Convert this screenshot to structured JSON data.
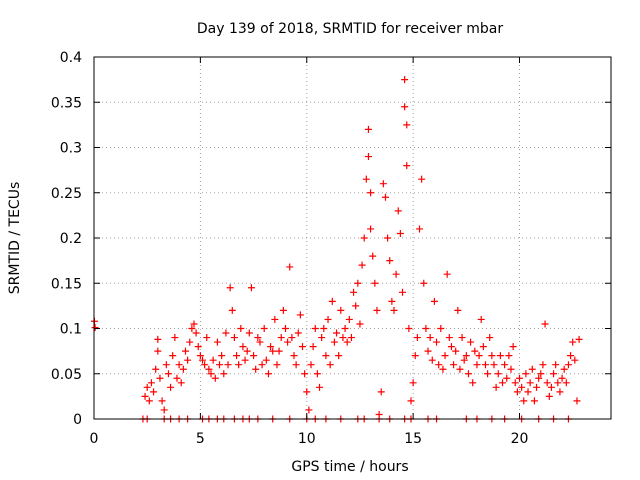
{
  "chart_data": {
    "type": "scatter",
    "title": "Day 139 of 2018, SRMTID for receiver mbar",
    "xlabel": "GPS time / hours",
    "ylabel": "SRMTID / TECUs",
    "xlim": [
      0,
      24.3
    ],
    "ylim": [
      0,
      0.4
    ],
    "xticks": [
      0,
      5,
      10,
      15,
      20
    ],
    "xtick_labels": [
      "0",
      "5",
      "10",
      "15",
      "20"
    ],
    "yticks": [
      0,
      0.05,
      0.1,
      0.15,
      0.2,
      0.25,
      0.3,
      0.35,
      0.4
    ],
    "ytick_labels": [
      "0",
      "0.05",
      "0.1",
      "0.15",
      "0.2",
      "0.25",
      "0.3",
      "0.35",
      "0.4"
    ],
    "grid": true,
    "marker": "plus",
    "series": [
      {
        "name": "SRMTID",
        "color": "#ff0000",
        "points": [
          [
            0.02,
            0.108
          ],
          [
            0.05,
            0.101
          ],
          [
            2.4,
            0.025
          ],
          [
            2.5,
            0.035
          ],
          [
            2.6,
            0.02
          ],
          [
            2.7,
            0.04
          ],
          [
            2.8,
            0.03
          ],
          [
            2.9,
            0.055
          ],
          [
            3.0,
            0.075
          ],
          [
            3.0,
            0.088
          ],
          [
            3.1,
            0.045
          ],
          [
            3.2,
            0.02
          ],
          [
            3.3,
            0.01
          ],
          [
            3.4,
            0.06
          ],
          [
            3.5,
            0.05
          ],
          [
            3.6,
            0.035
          ],
          [
            3.7,
            0.07
          ],
          [
            3.8,
            0.09
          ],
          [
            3.9,
            0.045
          ],
          [
            4.0,
            0.06
          ],
          [
            4.1,
            0.04
          ],
          [
            4.2,
            0.055
          ],
          [
            4.3,
            0.075
          ],
          [
            4.4,
            0.065
          ],
          [
            4.5,
            0.085
          ],
          [
            4.6,
            0.1
          ],
          [
            4.7,
            0.105
          ],
          [
            4.8,
            0.095
          ],
          [
            4.9,
            0.08
          ],
          [
            5.0,
            0.07
          ],
          [
            5.1,
            0.065
          ],
          [
            5.2,
            0.06
          ],
          [
            5.3,
            0.09
          ],
          [
            5.4,
            0.055
          ],
          [
            5.5,
            0.05
          ],
          [
            5.6,
            0.065
          ],
          [
            5.7,
            0.045
          ],
          [
            5.8,
            0.085
          ],
          [
            5.9,
            0.06
          ],
          [
            6.0,
            0.07
          ],
          [
            6.1,
            0.05
          ],
          [
            6.2,
            0.095
          ],
          [
            6.3,
            0.06
          ],
          [
            6.4,
            0.145
          ],
          [
            6.5,
            0.12
          ],
          [
            6.6,
            0.09
          ],
          [
            6.7,
            0.07
          ],
          [
            6.8,
            0.06
          ],
          [
            6.9,
            0.1
          ],
          [
            7.0,
            0.08
          ],
          [
            7.1,
            0.065
          ],
          [
            7.2,
            0.075
          ],
          [
            7.3,
            0.095
          ],
          [
            7.4,
            0.145
          ],
          [
            7.5,
            0.07
          ],
          [
            7.6,
            0.055
          ],
          [
            7.7,
            0.09
          ],
          [
            7.8,
            0.085
          ],
          [
            7.9,
            0.06
          ],
          [
            8.0,
            0.1
          ],
          [
            8.1,
            0.065
          ],
          [
            8.2,
            0.05
          ],
          [
            8.3,
            0.08
          ],
          [
            8.4,
            0.075
          ],
          [
            8.5,
            0.11
          ],
          [
            8.6,
            0.06
          ],
          [
            8.7,
            0.075
          ],
          [
            8.8,
            0.09
          ],
          [
            8.9,
            0.12
          ],
          [
            9.0,
            0.1
          ],
          [
            9.1,
            0.085
          ],
          [
            9.2,
            0.168
          ],
          [
            9.3,
            0.09
          ],
          [
            9.4,
            0.07
          ],
          [
            9.5,
            0.06
          ],
          [
            9.6,
            0.095
          ],
          [
            9.7,
            0.115
          ],
          [
            9.8,
            0.08
          ],
          [
            9.9,
            0.05
          ],
          [
            10.0,
            0.03
          ],
          [
            10.1,
            0.01
          ],
          [
            10.2,
            0.06
          ],
          [
            10.3,
            0.08
          ],
          [
            10.4,
            0.1
          ],
          [
            10.5,
            0.05
          ],
          [
            10.6,
            0.035
          ],
          [
            10.7,
            0.09
          ],
          [
            10.8,
            0.1
          ],
          [
            10.9,
            0.07
          ],
          [
            11.0,
            0.11
          ],
          [
            11.1,
            0.06
          ],
          [
            11.2,
            0.13
          ],
          [
            11.3,
            0.085
          ],
          [
            11.4,
            0.095
          ],
          [
            11.5,
            0.07
          ],
          [
            11.6,
            0.12
          ],
          [
            11.7,
            0.09
          ],
          [
            11.8,
            0.1
          ],
          [
            11.9,
            0.085
          ],
          [
            12.0,
            0.11
          ],
          [
            12.1,
            0.09
          ],
          [
            12.2,
            0.14
          ],
          [
            12.3,
            0.125
          ],
          [
            12.4,
            0.15
          ],
          [
            12.5,
            0.105
          ],
          [
            12.6,
            0.17
          ],
          [
            12.7,
            0.2
          ],
          [
            12.8,
            0.265
          ],
          [
            12.9,
            0.32
          ],
          [
            12.9,
            0.29
          ],
          [
            13.0,
            0.25
          ],
          [
            13.0,
            0.21
          ],
          [
            13.1,
            0.18
          ],
          [
            13.2,
            0.15
          ],
          [
            13.3,
            0.12
          ],
          [
            13.4,
            0.005
          ],
          [
            13.5,
            0.03
          ],
          [
            13.6,
            0.26
          ],
          [
            13.7,
            0.245
          ],
          [
            13.8,
            0.2
          ],
          [
            13.9,
            0.175
          ],
          [
            14.0,
            0.13
          ],
          [
            14.1,
            0.12
          ],
          [
            14.2,
            0.16
          ],
          [
            14.3,
            0.23
          ],
          [
            14.4,
            0.205
          ],
          [
            14.5,
            0.14
          ],
          [
            14.6,
            0.375
          ],
          [
            14.6,
            0.345
          ],
          [
            14.7,
            0.325
          ],
          [
            14.7,
            0.28
          ],
          [
            14.8,
            0.1
          ],
          [
            14.9,
            0.02
          ],
          [
            15.0,
            0.04
          ],
          [
            15.1,
            0.07
          ],
          [
            15.2,
            0.09
          ],
          [
            15.3,
            0.21
          ],
          [
            15.4,
            0.265
          ],
          [
            15.5,
            0.15
          ],
          [
            15.6,
            0.1
          ],
          [
            15.7,
            0.075
          ],
          [
            15.8,
            0.09
          ],
          [
            15.9,
            0.065
          ],
          [
            16.0,
            0.13
          ],
          [
            16.1,
            0.085
          ],
          [
            16.2,
            0.06
          ],
          [
            16.3,
            0.1
          ],
          [
            16.4,
            0.055
          ],
          [
            16.5,
            0.07
          ],
          [
            16.6,
            0.16
          ],
          [
            16.7,
            0.09
          ],
          [
            16.8,
            0.08
          ],
          [
            16.9,
            0.06
          ],
          [
            17.0,
            0.075
          ],
          [
            17.1,
            0.12
          ],
          [
            17.2,
            0.055
          ],
          [
            17.3,
            0.09
          ],
          [
            17.4,
            0.065
          ],
          [
            17.5,
            0.07
          ],
          [
            17.6,
            0.05
          ],
          [
            17.7,
            0.085
          ],
          [
            17.8,
            0.04
          ],
          [
            17.9,
            0.075
          ],
          [
            18.0,
            0.06
          ],
          [
            18.1,
            0.07
          ],
          [
            18.2,
            0.11
          ],
          [
            18.3,
            0.08
          ],
          [
            18.4,
            0.06
          ],
          [
            18.5,
            0.05
          ],
          [
            18.6,
            0.09
          ],
          [
            18.7,
            0.07
          ],
          [
            18.8,
            0.06
          ],
          [
            18.9,
            0.035
          ],
          [
            19.0,
            0.05
          ],
          [
            19.1,
            0.07
          ],
          [
            19.2,
            0.04
          ],
          [
            19.3,
            0.06
          ],
          [
            19.4,
            0.045
          ],
          [
            19.5,
            0.07
          ],
          [
            19.6,
            0.055
          ],
          [
            19.7,
            0.08
          ],
          [
            19.8,
            0.04
          ],
          [
            19.9,
            0.03
          ],
          [
            20.0,
            0.045
          ],
          [
            20.1,
            0.035
          ],
          [
            20.2,
            0.02
          ],
          [
            20.3,
            0.05
          ],
          [
            20.4,
            0.03
          ],
          [
            20.5,
            0.04
          ],
          [
            20.6,
            0.055
          ],
          [
            20.7,
            0.02
          ],
          [
            20.8,
            0.035
          ],
          [
            20.9,
            0.045
          ],
          [
            21.0,
            0.05
          ],
          [
            21.1,
            0.06
          ],
          [
            21.2,
            0.105
          ],
          [
            21.3,
            0.04
          ],
          [
            21.4,
            0.025
          ],
          [
            21.5,
            0.035
          ],
          [
            21.6,
            0.05
          ],
          [
            21.7,
            0.06
          ],
          [
            21.8,
            0.04
          ],
          [
            21.9,
            0.03
          ],
          [
            22.0,
            0.045
          ],
          [
            22.1,
            0.055
          ],
          [
            22.2,
            0.04
          ],
          [
            22.3,
            0.06
          ],
          [
            22.4,
            0.07
          ],
          [
            22.5,
            0.085
          ],
          [
            22.6,
            0.065
          ],
          [
            22.7,
            0.02
          ],
          [
            22.8,
            0.088
          ],
          [
            2.3,
            0.0
          ],
          [
            2.5,
            0.0
          ],
          [
            3.3,
            0.0
          ],
          [
            3.6,
            0.0
          ],
          [
            4.0,
            0.0
          ],
          [
            4.4,
            0.0
          ],
          [
            5.1,
            0.0
          ],
          [
            5.4,
            0.0
          ],
          [
            5.8,
            0.0
          ],
          [
            6.1,
            0.0
          ],
          [
            6.6,
            0.0
          ],
          [
            7.0,
            0.0
          ],
          [
            7.3,
            0.0
          ],
          [
            7.7,
            0.0
          ],
          [
            8.4,
            0.0
          ],
          [
            9.2,
            0.0
          ],
          [
            10.0,
            0.0
          ],
          [
            10.4,
            0.0
          ],
          [
            10.9,
            0.0
          ],
          [
            11.6,
            0.0
          ],
          [
            12.4,
            0.0
          ],
          [
            12.7,
            0.0
          ],
          [
            13.4,
            0.0
          ],
          [
            13.9,
            0.0
          ],
          [
            14.6,
            0.0
          ],
          [
            14.9,
            0.0
          ],
          [
            15.7,
            0.0
          ],
          [
            16.1,
            0.0
          ],
          [
            17.5,
            0.0
          ],
          [
            18.0,
            0.0
          ],
          [
            18.7,
            0.0
          ],
          [
            19.3,
            0.0
          ],
          [
            20.1,
            0.0
          ],
          [
            20.9,
            0.0
          ],
          [
            21.6,
            0.0
          ],
          [
            22.3,
            0.0
          ]
        ]
      }
    ]
  }
}
